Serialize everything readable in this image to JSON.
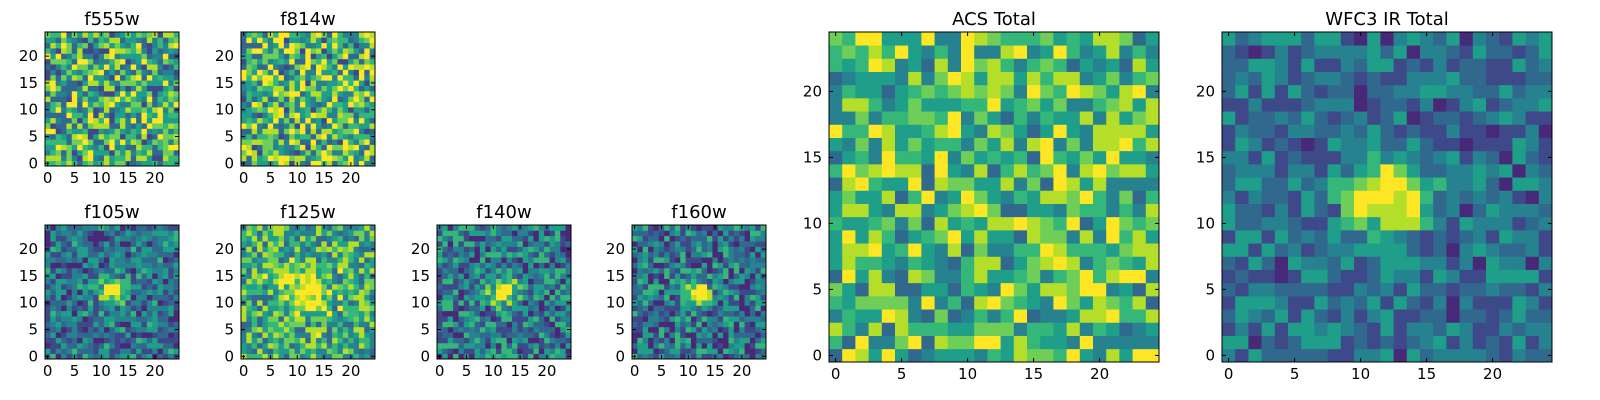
{
  "chart_data": [
    {
      "type": "heatmap",
      "title": "f555w",
      "xticks": [
        "0",
        "5",
        "10",
        "15",
        "20"
      ],
      "yticks": [
        "0",
        "5",
        "10",
        "15",
        "20"
      ],
      "grid_size": 25,
      "pattern": "noise",
      "level": 0.62,
      "spread": 0.38,
      "seed": 11
    },
    {
      "type": "heatmap",
      "title": "f814w",
      "xticks": [
        "0",
        "5",
        "10",
        "15",
        "20"
      ],
      "yticks": [
        "0",
        "5",
        "10",
        "15",
        "20"
      ],
      "grid_size": 25,
      "pattern": "noise",
      "level": 0.65,
      "spread": 0.38,
      "seed": 23
    },
    {
      "type": "heatmap",
      "title": "f105w",
      "xticks": [
        "0",
        "5",
        "10",
        "15",
        "20"
      ],
      "yticks": [
        "0",
        "5",
        "10",
        "15",
        "20"
      ],
      "grid_size": 25,
      "pattern": "blob",
      "source_center": [
        12,
        12
      ],
      "level": 0.38,
      "spread": 0.24,
      "blob_amp": 0.6,
      "blob_sigma": 1.8,
      "seed": 37
    },
    {
      "type": "heatmap",
      "title": "f125w",
      "xticks": [
        "0",
        "5",
        "10",
        "15",
        "20"
      ],
      "yticks": [
        "0",
        "5",
        "10",
        "15",
        "20"
      ],
      "grid_size": 25,
      "pattern": "blob",
      "source_center": [
        12,
        12
      ],
      "level": 0.6,
      "spread": 0.3,
      "blob_amp": 0.45,
      "blob_sigma": 2.8,
      "seed": 41
    },
    {
      "type": "heatmap",
      "title": "f140w",
      "xticks": [
        "0",
        "5",
        "10",
        "15",
        "20"
      ],
      "yticks": [
        "0",
        "5",
        "10",
        "15",
        "20"
      ],
      "grid_size": 25,
      "pattern": "blob",
      "source_center": [
        12,
        12
      ],
      "level": 0.42,
      "spread": 0.28,
      "blob_amp": 0.6,
      "blob_sigma": 1.7,
      "seed": 53
    },
    {
      "type": "heatmap",
      "title": "f160w",
      "xticks": [
        "0",
        "5",
        "10",
        "15",
        "20"
      ],
      "yticks": [
        "0",
        "5",
        "10",
        "15",
        "20"
      ],
      "grid_size": 25,
      "pattern": "blob",
      "source_center": [
        12,
        12
      ],
      "level": 0.38,
      "spread": 0.28,
      "blob_amp": 0.65,
      "blob_sigma": 1.6,
      "seed": 67
    },
    {
      "type": "heatmap",
      "title": "ACS Total",
      "xticks": [
        "0",
        "5",
        "10",
        "15",
        "20"
      ],
      "yticks": [
        "0",
        "5",
        "10",
        "15",
        "20"
      ],
      "grid_size": 25,
      "pattern": "noise",
      "level": 0.66,
      "spread": 0.3,
      "seed": 79
    },
    {
      "type": "heatmap",
      "title": "WFC3 IR Total",
      "xticks": [
        "0",
        "5",
        "10",
        "15",
        "20"
      ],
      "yticks": [
        "0",
        "5",
        "10",
        "15",
        "20"
      ],
      "grid_size": 25,
      "pattern": "blob",
      "source_center": [
        12,
        12
      ],
      "level": 0.38,
      "spread": 0.2,
      "blob_amp": 0.7,
      "blob_sigma": 2.0,
      "seed": 97
    }
  ],
  "colormap": [
    "#440154",
    "#482878",
    "#3e4989",
    "#31688e",
    "#26828e",
    "#1f9e89",
    "#35b779",
    "#6ece58",
    "#b5de2b",
    "#fde725"
  ]
}
